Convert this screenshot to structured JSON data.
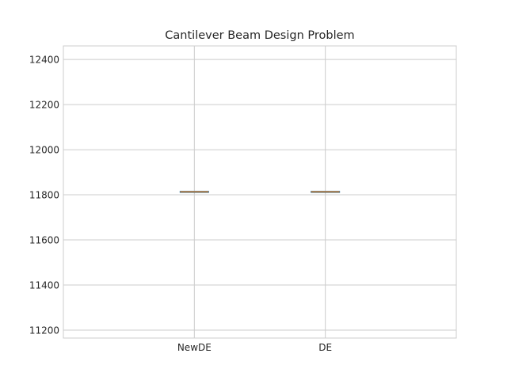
{
  "chart_data": {
    "type": "box",
    "title": "Cantilever Beam Design Problem",
    "xlabel": "",
    "ylabel": "",
    "categories": [
      "NewDE",
      "DE"
    ],
    "boxes": [
      {
        "name": "NewDE",
        "min": 11813,
        "q1": 11813,
        "median": 11813,
        "q3": 11813,
        "max": 11813
      },
      {
        "name": "DE",
        "min": 11813,
        "q1": 11813,
        "median": 11813,
        "q3": 11813,
        "max": 11813
      }
    ],
    "yticks": [
      11200,
      11400,
      11600,
      11800,
      12000,
      12200,
      12400
    ],
    "ylim": [
      11165,
      12460
    ],
    "grid": true,
    "colors": {
      "box": "#1f77b4",
      "median": "#ff7f0e",
      "grid": "#cccccc",
      "spine": "#cccccc",
      "text": "#262626"
    }
  }
}
